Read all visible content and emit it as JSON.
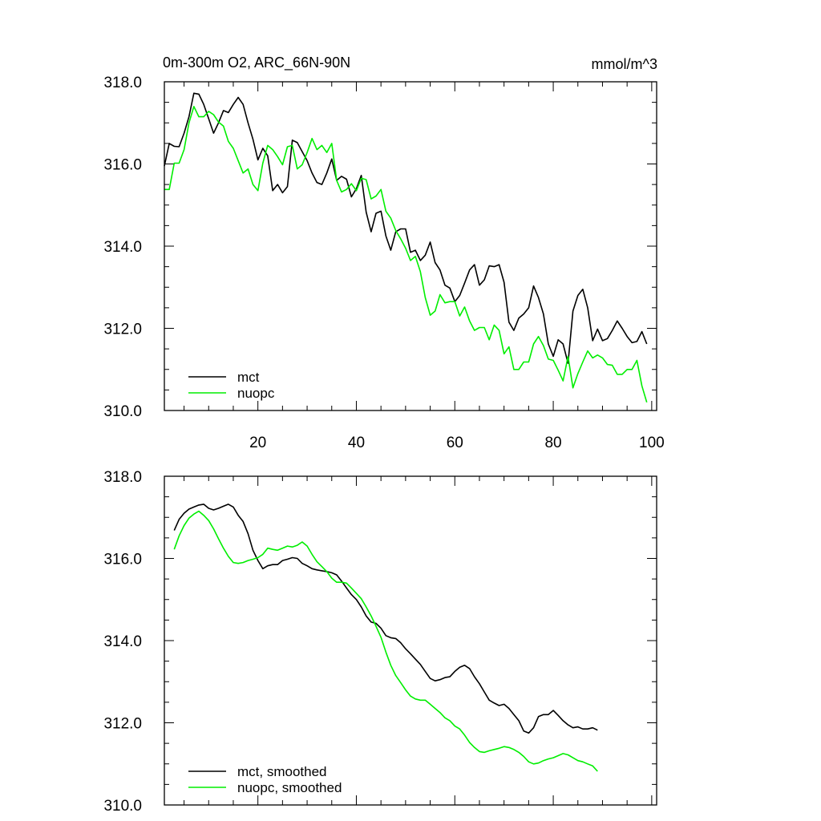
{
  "chart_data": [
    {
      "type": "line",
      "title": "0m-300m O2, ARC_66N-90N",
      "units_label": "mmol/m^3",
      "xlabel": "",
      "ylabel": "",
      "xlim": [
        1,
        101
      ],
      "ylim": [
        310,
        318
      ],
      "xticks": [
        20,
        40,
        60,
        80,
        100
      ],
      "xtick_labels": [
        "20",
        "40",
        "60",
        "80",
        "100"
      ],
      "yticks": [
        310,
        312,
        314,
        316,
        318
      ],
      "ytick_labels": [
        "310.0",
        "312.0",
        "314.0",
        "316.0",
        "318.0"
      ],
      "legend_position": "bottom-left",
      "series": [
        {
          "name": "mct",
          "color": "#000000",
          "x_start": 1,
          "values": [
            315.95,
            316.5,
            316.43,
            316.42,
            316.75,
            317.15,
            317.72,
            317.7,
            317.45,
            317.1,
            316.75,
            317.0,
            317.3,
            317.25,
            317.45,
            317.62,
            317.45,
            317.0,
            316.6,
            316.1,
            316.38,
            316.2,
            315.35,
            315.5,
            315.3,
            315.45,
            316.58,
            316.52,
            316.3,
            316.08,
            315.78,
            315.55,
            315.5,
            315.78,
            316.12,
            315.6,
            315.7,
            315.63,
            315.2,
            315.4,
            315.72,
            314.83,
            314.35,
            314.8,
            314.85,
            314.25,
            313.9,
            314.35,
            314.42,
            314.42,
            313.85,
            313.9,
            313.65,
            313.78,
            314.1,
            313.6,
            313.42,
            313.05,
            312.98,
            312.65,
            312.8,
            313.1,
            313.42,
            313.55,
            313.05,
            313.18,
            313.52,
            313.5,
            313.55,
            313.12,
            312.15,
            311.95,
            312.25,
            312.35,
            312.5,
            313.03,
            312.75,
            312.35,
            311.62,
            311.32,
            311.72,
            311.62,
            311.15,
            312.42,
            312.8,
            312.95,
            312.5,
            311.7,
            311.98,
            311.7,
            311.75,
            311.95,
            312.18,
            312.0,
            311.8,
            311.65,
            311.68,
            311.92,
            311.62
          ]
        },
        {
          "name": "nuopc",
          "color": "#00ee00",
          "x_start": 1,
          "values": [
            315.38,
            315.38,
            316.02,
            316.02,
            316.35,
            317.0,
            317.4,
            317.15,
            317.15,
            317.28,
            317.2,
            317.02,
            316.92,
            316.55,
            316.38,
            316.08,
            315.78,
            315.88,
            315.5,
            315.35,
            316.02,
            316.45,
            316.35,
            316.18,
            315.98,
            316.42,
            316.45,
            315.88,
            315.98,
            316.28,
            316.62,
            316.35,
            316.45,
            316.28,
            316.5,
            315.6,
            315.32,
            315.38,
            315.52,
            315.35,
            315.65,
            315.62,
            315.15,
            315.22,
            315.38,
            314.85,
            314.68,
            314.38,
            314.18,
            313.95,
            313.65,
            313.75,
            313.38,
            312.75,
            312.32,
            312.42,
            312.82,
            312.62,
            312.65,
            312.65,
            312.3,
            312.52,
            312.18,
            311.95,
            312.02,
            312.02,
            311.72,
            312.08,
            311.95,
            311.38,
            311.55,
            311.0,
            311.0,
            311.18,
            311.18,
            311.62,
            311.8,
            311.58,
            311.25,
            311.22,
            310.98,
            310.72,
            311.32,
            310.55,
            310.9,
            311.18,
            311.45,
            311.28,
            311.35,
            311.28,
            311.12,
            311.1,
            310.88,
            310.88,
            311.0,
            311.0,
            311.22,
            310.6,
            310.2
          ]
        }
      ]
    },
    {
      "type": "line",
      "title": "",
      "xlabel": "",
      "ylabel": "",
      "xlim": [
        1,
        101
      ],
      "ylim": [
        310,
        318
      ],
      "yticks": [
        310,
        312,
        314,
        316,
        318
      ],
      "ytick_labels": [
        "310.0",
        "312.0",
        "314.0",
        "316.0",
        "318.0"
      ],
      "legend_position": "bottom-left",
      "series": [
        {
          "name": "mct, smoothed",
          "color": "#000000",
          "x_start": 3,
          "values": [
            316.68,
            316.95,
            317.1,
            317.2,
            317.25,
            317.3,
            317.32,
            317.22,
            317.18,
            317.22,
            317.27,
            317.32,
            317.25,
            317.05,
            316.9,
            316.6,
            316.2,
            315.95,
            315.75,
            315.82,
            315.85,
            315.85,
            315.95,
            315.98,
            316.02,
            316.0,
            315.88,
            315.82,
            315.75,
            315.72,
            315.7,
            315.68,
            315.65,
            315.6,
            315.45,
            315.28,
            315.12,
            315.0,
            314.82,
            314.6,
            314.45,
            314.42,
            314.3,
            314.12,
            314.07,
            314.05,
            313.95,
            313.8,
            313.68,
            313.55,
            313.42,
            313.25,
            313.08,
            313.02,
            313.05,
            313.1,
            313.12,
            313.25,
            313.35,
            313.4,
            313.32,
            313.12,
            312.95,
            312.75,
            312.55,
            312.48,
            312.42,
            312.45,
            312.35,
            312.2,
            312.05,
            311.8,
            311.75,
            311.88,
            312.15,
            312.2,
            312.2,
            312.3,
            312.18,
            312.05,
            311.95,
            311.88,
            311.9,
            311.85,
            311.85,
            311.88,
            311.82
          ]
        },
        {
          "name": "nuopc, smoothed",
          "color": "#00ee00",
          "x_start": 3,
          "values": [
            316.22,
            316.55,
            316.8,
            316.98,
            317.08,
            317.15,
            317.05,
            316.92,
            316.72,
            316.48,
            316.25,
            316.05,
            315.9,
            315.88,
            315.9,
            315.95,
            315.98,
            316.02,
            316.1,
            316.25,
            316.22,
            316.2,
            316.25,
            316.3,
            316.28,
            316.32,
            316.4,
            316.3,
            316.1,
            315.92,
            315.8,
            315.68,
            315.52,
            315.42,
            315.42,
            315.4,
            315.28,
            315.15,
            315.02,
            314.82,
            314.6,
            314.35,
            314.08,
            313.72,
            313.4,
            313.15,
            312.98,
            312.8,
            312.65,
            312.58,
            312.55,
            312.55,
            312.45,
            312.35,
            312.25,
            312.12,
            312.05,
            311.92,
            311.85,
            311.7,
            311.52,
            311.4,
            311.3,
            311.28,
            311.32,
            311.35,
            311.38,
            311.42,
            311.4,
            311.35,
            311.28,
            311.18,
            311.05,
            311.0,
            311.02,
            311.08,
            311.12,
            311.15,
            311.2,
            311.25,
            311.22,
            311.15,
            311.08,
            311.05,
            311.0,
            310.95,
            310.82
          ]
        }
      ]
    }
  ]
}
